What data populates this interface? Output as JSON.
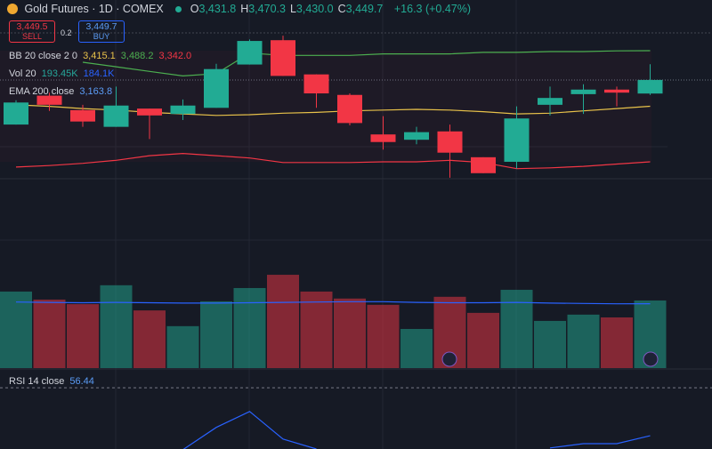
{
  "header": {
    "title": "Gold Futures · 1D · COMEX",
    "ohlc": [
      {
        "key": "O",
        "value": "3,431.8"
      },
      {
        "key": "H",
        "value": "3,470.3"
      },
      {
        "key": "L",
        "value": "3,430.0"
      },
      {
        "key": "C",
        "value": "3,449.7"
      }
    ],
    "change": "+16.3 (+0.47%)"
  },
  "trade": {
    "sell_price": "3,449.5",
    "sell": "SELL",
    "spread": "0.2",
    "buy_price": "3,449.7",
    "buy": "BUY"
  },
  "legends": [
    {
      "label": "BB 20 close 2 0",
      "values": [
        "3,415.1",
        "3,488.2",
        "3,342.0"
      ],
      "colors": [
        "#e8c24a",
        "#4caf50",
        "#f23645"
      ]
    },
    {
      "label": "Vol 20",
      "values": [
        "193.45K",
        "184.1K"
      ],
      "colors": [
        "#26a69a",
        "#2962ff"
      ]
    },
    {
      "label": "EMA 200 close",
      "values": [
        "3,163.8"
      ],
      "colors": [
        "#5b9cf6"
      ]
    }
  ],
  "rsi_legend": {
    "label": "RSI 14 close",
    "values": [
      "56.44"
    ],
    "colors": [
      "#5b9cf6"
    ]
  },
  "chart_data": {
    "type": "candlestick",
    "categories": [
      null,
      null,
      null,
      null,
      null,
      null,
      null,
      null,
      null,
      null,
      null,
      null,
      null,
      null,
      null,
      null,
      null,
      null,
      null,
      null
    ],
    "open": [
      3391,
      3429,
      3410,
      3388,
      3412,
      3405,
      3413,
      3470,
      3502,
      3457,
      3430,
      3378,
      3371,
      3382,
      3348,
      3342,
      3417,
      3431,
      3437,
      3431.8
    ],
    "high": [
      3423,
      3433,
      3417,
      3441,
      3412,
      3424,
      3471,
      3503,
      3508,
      3457,
      3432,
      3402,
      3388,
      3391,
      3348,
      3415,
      3441,
      3444,
      3441,
      3470.3
    ],
    "low": [
      3391,
      3409,
      3388,
      3388,
      3372,
      3397,
      3413,
      3470,
      3455,
      3413,
      3390,
      3358,
      3365,
      3321,
      3327,
      3333,
      3403,
      3405,
      3415,
      3430.0
    ],
    "close": [
      3420,
      3417,
      3395,
      3416,
      3403,
      3416,
      3464,
      3501,
      3455,
      3432,
      3393,
      3368,
      3381,
      3354,
      3327,
      3399,
      3426,
      3437,
      3433,
      3449.7
    ],
    "up_color": "#22ab94",
    "down_color": "#f23645",
    "ylim": [
      3320.9,
      3554.9
    ],
    "indicators": [
      {
        "key": "bb_upper",
        "color": "#4caf50",
        "values": [
          null,
          null,
          3473,
          3467,
          3461,
          3455,
          3458,
          3485,
          3482,
          3482,
          3482,
          3484,
          3484,
          3484,
          3486,
          3486,
          3487,
          3487,
          3488,
          3488.2
        ]
      },
      {
        "key": "bb_basis",
        "color": "#e8c24a",
        "values": [
          3417,
          3415,
          3412,
          3410,
          3407,
          3405,
          3403,
          3404,
          3406,
          3407,
          3409,
          3410,
          3411,
          3410,
          3408,
          3405,
          3406,
          3409,
          3412,
          3415.1
        ]
      },
      {
        "key": "bb_lower",
        "color": "#f23645",
        "values": [
          3335,
          3337,
          3340,
          3344,
          3350,
          3353,
          3350,
          3347,
          3341,
          3341,
          3341,
          3342,
          3342,
          3344,
          3341,
          3333,
          3334,
          3336,
          3339,
          3342.0
        ]
      }
    ],
    "volume": {
      "values": [
        219000,
        196000,
        183000,
        237000,
        165000,
        120000,
        191000,
        229000,
        267000,
        219000,
        199000,
        181000,
        112000,
        204000,
        158000,
        224000,
        135000,
        153000,
        145000,
        193450
      ],
      "ylim": [
        0,
        290000
      ],
      "up_color": "#22ab94",
      "down_color": "#f23645",
      "ma": {
        "color": "#2962ff",
        "values": [
          189000,
          188000,
          187000,
          188000,
          187000,
          186000,
          186000,
          187000,
          188000,
          189000,
          190000,
          190000,
          188000,
          187000,
          187000,
          188000,
          186000,
          185000,
          184000,
          184100
        ]
      }
    },
    "rsi": {
      "values": [
        null,
        null,
        null,
        null,
        null,
        52.5,
        58.8,
        63.3,
        55.5,
        52.7,
        null,
        null,
        null,
        null,
        null,
        null,
        53,
        54.2,
        54.2,
        56.44
      ],
      "ylim": [
        52.7,
        75.3
      ],
      "upper_band": 70,
      "color": "#2962ff"
    }
  }
}
